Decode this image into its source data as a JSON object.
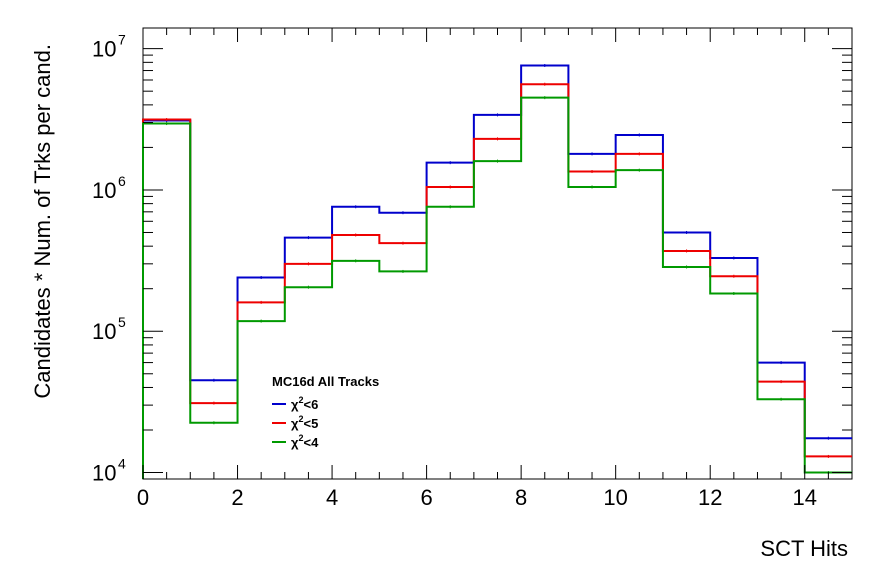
{
  "chart_data": {
    "type": "line",
    "step": true,
    "xlabel": "SCT Hits",
    "ylabel": "Candidates * Num. of Trks per cand.",
    "xlim": [
      0,
      15
    ],
    "ylim": [
      9000,
      14000000
    ],
    "yscale": "log",
    "x_ticks": [
      0,
      2,
      4,
      6,
      8,
      10,
      12,
      14
    ],
    "y_ticks": [
      {
        "value": 10000,
        "base": "10",
        "exp": "4"
      },
      {
        "value": 100000,
        "base": "10",
        "exp": "5"
      },
      {
        "value": 1000000,
        "base": "10",
        "exp": "6"
      },
      {
        "value": 10000000,
        "base": "10",
        "exp": "7"
      }
    ],
    "bin_edges": [
      0,
      1,
      2,
      3,
      4,
      5,
      6,
      7,
      8,
      9,
      10,
      11,
      12,
      13,
      14,
      15
    ],
    "legend": {
      "title": "MC16d All Tracks",
      "placement": "bottom-left"
    },
    "series": [
      {
        "name": "χ²<6",
        "name_base": "χ",
        "name_sup": "2",
        "name_rest": "<6",
        "color": "#0000cc",
        "values": [
          3100000,
          45000,
          240000,
          460000,
          760000,
          690000,
          1560000,
          3400000,
          7600000,
          1800000,
          2450000,
          500000,
          330000,
          60000,
          17500
        ]
      },
      {
        "name": "χ²<5",
        "name_base": "χ",
        "name_sup": "2",
        "name_rest": "<5",
        "color": "#ee0000",
        "values": [
          3150000,
          31000,
          160000,
          300000,
          480000,
          420000,
          1050000,
          2300000,
          5600000,
          1350000,
          1800000,
          370000,
          245000,
          44000,
          13000
        ]
      },
      {
        "name": "χ²<4",
        "name_base": "χ",
        "name_sup": "2",
        "name_rest": "<4",
        "color": "#009900",
        "values": [
          2950000,
          22500,
          118000,
          205000,
          315000,
          265000,
          760000,
          1600000,
          4500000,
          1050000,
          1380000,
          285000,
          185000,
          33000,
          10000
        ]
      }
    ]
  }
}
